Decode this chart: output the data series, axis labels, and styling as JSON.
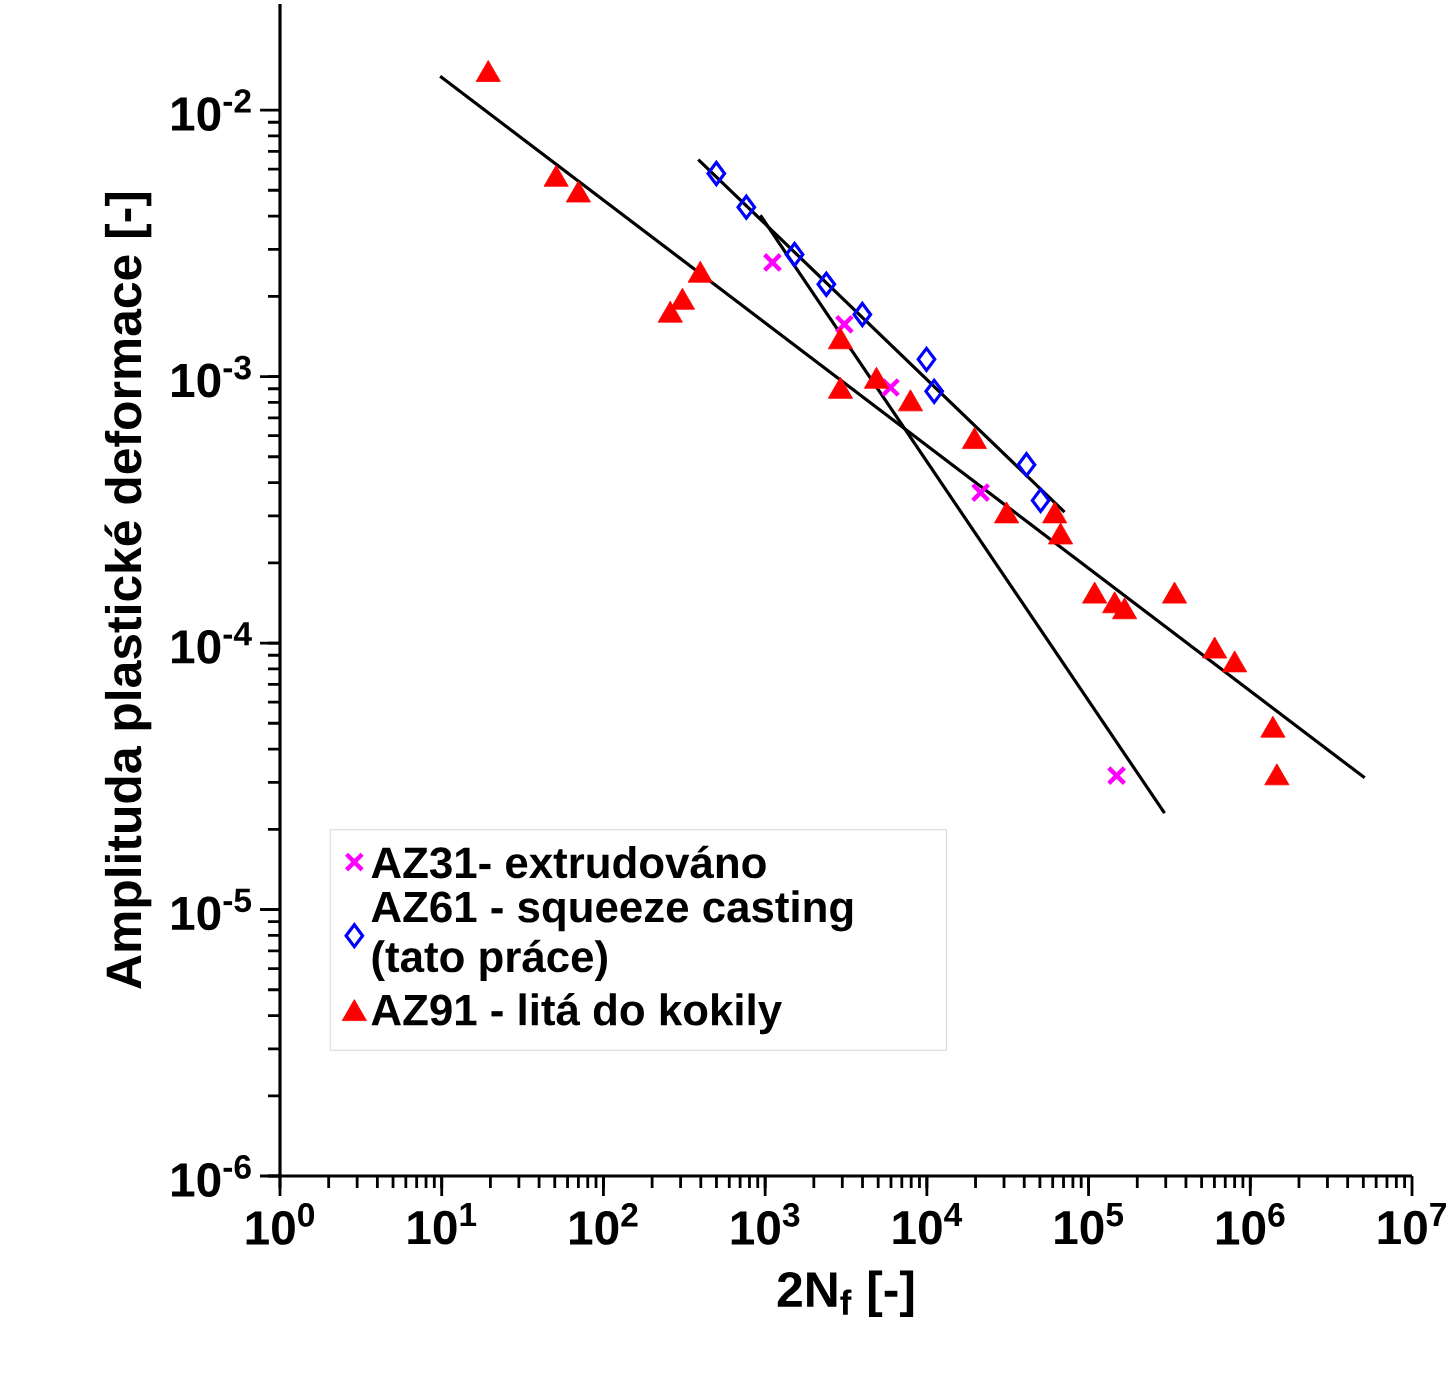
{
  "chart_data": {
    "type": "scatter",
    "xlabel": "2N$_{f}$ [-]",
    "ylabel": "Amplituda plastické deformace [-]",
    "log": "xy",
    "grid": false,
    "legend": "bottom left",
    "xlim": [
      1,
      10000000
    ],
    "ylim": [
      1e-06,
      0.025
    ],
    "xticks": [
      {
        "value": 1,
        "label": "10$^{0}$"
      },
      {
        "value": 10,
        "label": "10$^{1}$"
      },
      {
        "value": 100,
        "label": "10$^{2}$"
      },
      {
        "value": 1000,
        "label": "10$^{3}$"
      },
      {
        "value": 10000,
        "label": "10$^{4}$"
      },
      {
        "value": 100000,
        "label": "10$^{5}$"
      },
      {
        "value": 1000000,
        "label": "10$^{6}$"
      },
      {
        "value": 10000000,
        "label": "10$^{7}$"
      }
    ],
    "yticks": [
      {
        "value": 1e-06,
        "label": "10$^{-6}$"
      },
      {
        "value": 1e-05,
        "label": "10$^{-5}$"
      },
      {
        "value": 0.0001,
        "label": "10$^{-4}$"
      },
      {
        "value": 0.001,
        "label": "10$^{-3}$"
      },
      {
        "value": 0.01,
        "label": "10$^{-2}$"
      }
    ],
    "series": [
      {
        "name": "AZ31- extrudováno",
        "color": "#ff00ff",
        "marker": "cross",
        "x": [
          1110,
          3090,
          5960,
          21500,
          149000
        ],
        "values": [
          0.00268,
          0.00157,
          0.00091,
          0.000367,
          3.18e-05
        ]
      },
      {
        "name": "AZ61 - squeeze casting (tato práce)",
        "color": "#0000ff",
        "marker": "diamond",
        "x": [
          499,
          765,
          1520,
          2390,
          3990,
          9950,
          11100,
          41300,
          50500
        ],
        "values": [
          0.00578,
          0.00432,
          0.00287,
          0.00222,
          0.00171,
          0.00116,
          0.00088,
          0.000467,
          0.000343
        ]
      },
      {
        "name": "AZ91 - litá do kokily",
        "color": "#ff0000",
        "marker": "triangle",
        "x": [
          19.4,
          51,
          70,
          397,
          308,
          259,
          2920,
          2920,
          4880,
          7920,
          19700,
          31100,
          61700,
          67100,
          109000,
          145000,
          167000,
          340000,
          602000,
          800000,
          1380000,
          1460000
        ],
        "values": [
          0.0136,
          0.0055,
          0.0048,
          0.0024,
          0.0019,
          0.0017,
          0.00135,
          0.00088,
          0.00096,
          0.00079,
          0.00057,
          0.0003,
          0.0003,
          0.00025,
          0.00015,
          0.000138,
          0.000131,
          0.00015,
          9.33e-05,
          8.28e-05,
          4.71e-05,
          3.12e-05
        ]
      },
      {
        "type": "line",
        "color": "#000000",
        "marker": "none",
        "x": [
          934,
          295000
        ],
        "values": [
          0.00403,
          2.3e-05
        ]
      },
      {
        "type": "line",
        "color": "#000000",
        "marker": "none",
        "x": [
          386,
          71000
        ],
        "values": [
          0.00652,
          0.00031
        ]
      },
      {
        "type": "line",
        "color": "#000000",
        "marker": "none",
        "x": [
          9.78,
          5100000
        ],
        "values": [
          0.0134,
          3.12e-05
        ]
      }
    ]
  }
}
